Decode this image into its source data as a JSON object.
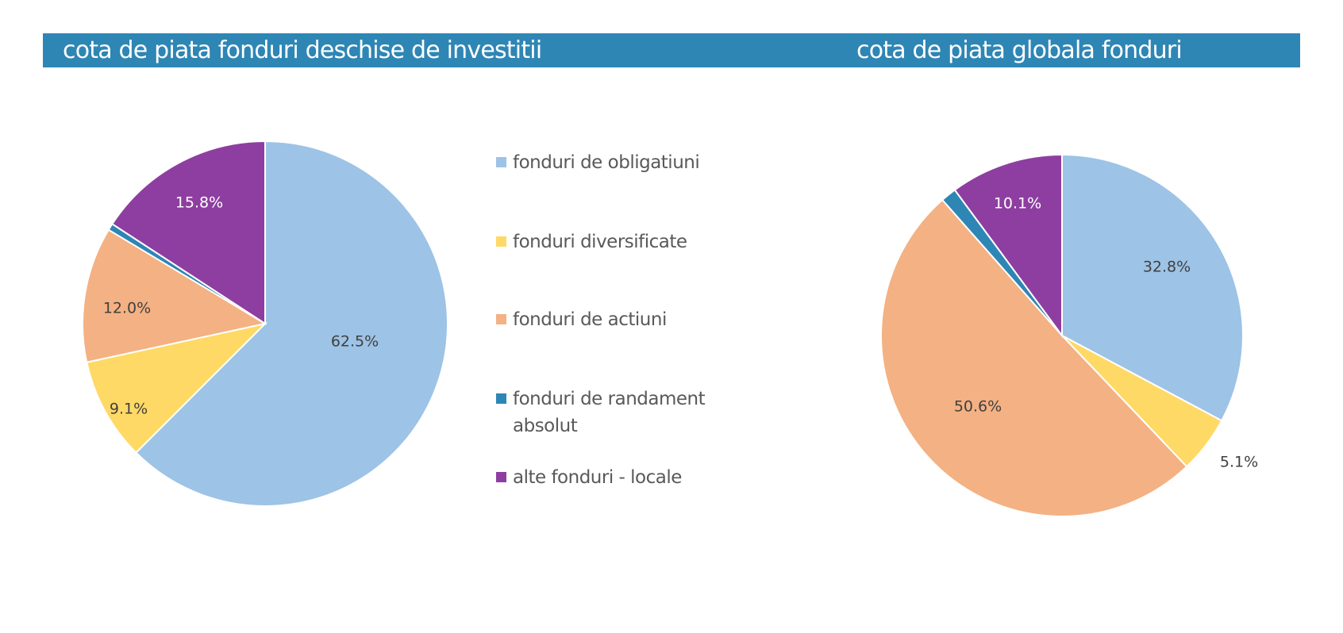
{
  "banner": {
    "left_title": "cota de piata fonduri deschise de investitii",
    "right_title": "cota de piata globala fonduri"
  },
  "legend": {
    "items": [
      {
        "label": "fonduri de obligatiuni",
        "color": "#9dc3e6"
      },
      {
        "label": "fonduri diversificate",
        "color": "#ffd966"
      },
      {
        "label": "fonduri de actiuni",
        "color": "#f4b183"
      },
      {
        "label": "fonduri de randament absolut",
        "color": "#2e86b5"
      },
      {
        "label": "alte fonduri - locale",
        "color": "#8e3ea0"
      }
    ]
  },
  "chart_data": [
    {
      "type": "pie",
      "title": "cota de piata fonduri deschise de investitii",
      "categories": [
        "fonduri de obligatiuni",
        "fonduri diversificate",
        "fonduri de actiuni",
        "fonduri de randament absolut",
        "alte fonduri - locale"
      ],
      "values": [
        62.5,
        9.1,
        12.0,
        0.6,
        15.8
      ],
      "labels": [
        "62.5%",
        "9.1%",
        "12.0%",
        "",
        "15.8%"
      ],
      "colors": [
        "#9dc3e6",
        "#ffd966",
        "#f4b183",
        "#2e86b5",
        "#8e3ea0"
      ],
      "label_colors": [
        "#404040",
        "#404040",
        "#404040",
        "",
        "#ffffff"
      ]
    },
    {
      "type": "pie",
      "title": "cota de piata globala fonduri",
      "categories": [
        "fonduri de obligatiuni",
        "fonduri diversificate",
        "fonduri de actiuni",
        "fonduri de randament absolut",
        "alte fonduri - locale"
      ],
      "values": [
        32.8,
        5.1,
        50.6,
        1.4,
        10.1
      ],
      "labels": [
        "32.8%",
        "5.1%",
        "50.6%",
        "",
        "10.1%"
      ],
      "colors": [
        "#9dc3e6",
        "#ffd966",
        "#f4b183",
        "#2e86b5",
        "#8e3ea0"
      ],
      "label_colors": [
        "#404040",
        "#404040",
        "#404040",
        "",
        "#ffffff"
      ]
    }
  ]
}
